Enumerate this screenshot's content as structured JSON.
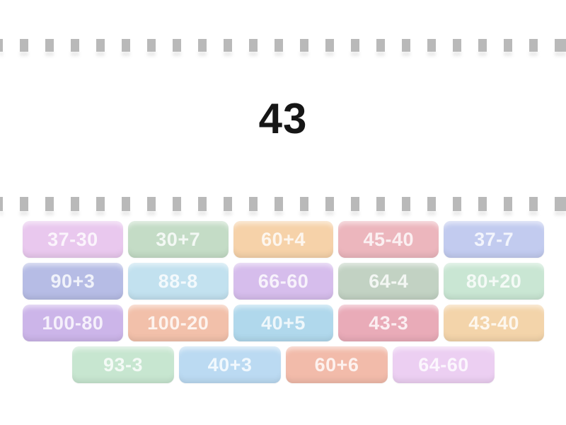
{
  "prompt": {
    "value": "43"
  },
  "colors": {
    "background": "#ffffff",
    "dash": "#b9b9b9",
    "prompt_text": "#161616",
    "tile_text": "rgba(255,255,255,0.80)"
  },
  "decorations": {
    "top_strip": "film-strip-dashes",
    "middle_strip": "film-strip-dashes"
  },
  "board": {
    "rows": [
      {
        "tiles": [
          {
            "label": "37-30",
            "color": "#e9c8ee"
          },
          {
            "label": "30+7",
            "color": "#c4dcc6"
          },
          {
            "label": "60+4",
            "color": "#f6d2a9"
          },
          {
            "label": "45-40",
            "color": "#ecb6bd"
          },
          {
            "label": "37-7",
            "color": "#c2cbef"
          }
        ]
      },
      {
        "tiles": [
          {
            "label": "90+3",
            "color": "#b6bce5"
          },
          {
            "label": "88-8",
            "color": "#c2e1ef"
          },
          {
            "label": "66-60",
            "color": "#d6bdec"
          },
          {
            "label": "64-4",
            "color": "#c2d2c3"
          },
          {
            "label": "80+20",
            "color": "#c9e6d3"
          }
        ]
      },
      {
        "tiles": [
          {
            "label": "100-80",
            "color": "#ccb5e9"
          },
          {
            "label": "100-20",
            "color": "#f2c0aa"
          },
          {
            "label": "40+5",
            "color": "#b0d8ec"
          },
          {
            "label": "43-3",
            "color": "#e9abb8"
          },
          {
            "label": "43-40",
            "color": "#f3d4aa"
          }
        ]
      },
      {
        "tiles": [
          {
            "label": "93-3",
            "color": "#c7e6d0"
          },
          {
            "label": "40+3",
            "color": "#bbdaf2"
          },
          {
            "label": "60+6",
            "color": "#f2bbaa"
          },
          {
            "label": "64-60",
            "color": "#eccff2"
          }
        ]
      }
    ]
  }
}
